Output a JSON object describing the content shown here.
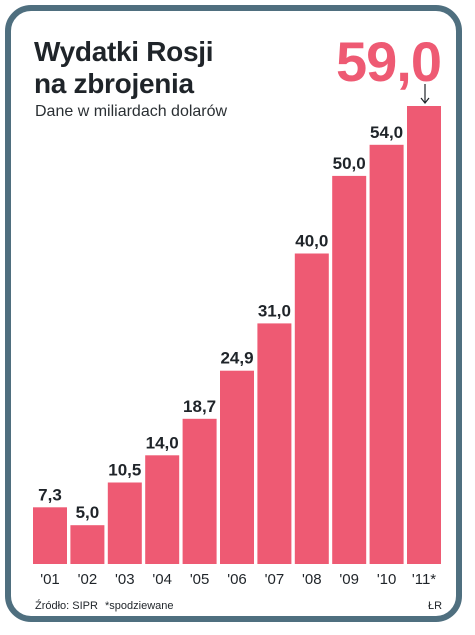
{
  "header": {
    "title_line1": "Wydatki Rosji",
    "title_line2": "na zbrojenia",
    "subtitle": "Dane w miliardach dolarów",
    "headline_value": "59,0"
  },
  "footer": {
    "source": "Źródło: SIPR",
    "note": "*spodziewane",
    "credit": "ŁR"
  },
  "colors": {
    "bar": "#ee5a73",
    "frame": "#4f6f7f",
    "text": "#1f2429"
  },
  "chart_data": {
    "type": "bar",
    "title": "Wydatki Rosji na zbrojenia",
    "subtitle": "Dane w miliardach dolarów",
    "categories": [
      "'01",
      "'02",
      "'03",
      "'04",
      "'05",
      "'06",
      "'07",
      "'08",
      "'09",
      "'10",
      "'11*"
    ],
    "values": [
      7.3,
      5.0,
      10.5,
      14.0,
      18.7,
      24.9,
      31.0,
      40.0,
      50.0,
      54.0,
      59.0
    ],
    "value_labels": [
      "7,3",
      "5,0",
      "10,5",
      "14,0",
      "18,7",
      "24,9",
      "31,0",
      "40,0",
      "50,0",
      "54,0",
      ""
    ],
    "xlabel": "",
    "ylabel": "",
    "ylim": [
      0,
      59
    ],
    "grid": false,
    "legend": "none"
  }
}
